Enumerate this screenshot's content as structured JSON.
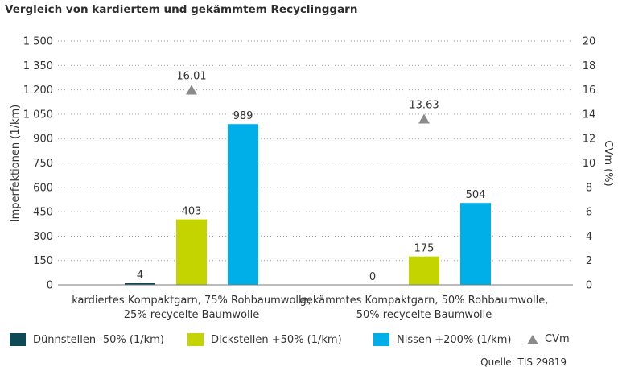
{
  "title": "Vergleich von kardiertem und gekämmtem Recyclinggarn",
  "source": "Quelle: TIS 29819",
  "colors": {
    "duennstellen": "#0e4a56",
    "dickstellen": "#c3d400",
    "nissen": "#00aee8",
    "cvm": "#8a8a8a",
    "grid": "#9a9a9a"
  },
  "chart_data": {
    "type": "bar",
    "ylabel": "Imperfektionen (1/km)",
    "y2label": "CVm (%)",
    "ylim": [
      0,
      1500
    ],
    "y2lim": [
      0,
      20
    ],
    "yticks": [
      "0",
      "150",
      "300",
      "450",
      "600",
      "750",
      "900",
      "1 050",
      "1 200",
      "1 350",
      "1 500"
    ],
    "y2ticks": [
      "0",
      "2",
      "4",
      "6",
      "8",
      "10",
      "12",
      "14",
      "16",
      "18",
      "20"
    ],
    "grid": true,
    "legend_position": "bottom",
    "categories": [
      [
        "kardiertes Kompaktgarn, 75% Rohbaumwolle,",
        "25% recycelte Baumwolle"
      ],
      [
        "gekämmtes Kompaktgarn, 50% Rohbaumwolle,",
        "50% recycelte Baumwolle"
      ]
    ],
    "series": [
      {
        "name": "Dünnstellen -50% (1/km)",
        "values": [
          4,
          0
        ],
        "labels": [
          "4",
          "0"
        ],
        "axis": "left"
      },
      {
        "name": "Dickstellen +50% (1/km)",
        "values": [
          403,
          175
        ],
        "labels": [
          "403",
          "175"
        ],
        "axis": "left"
      },
      {
        "name": "Nissen +200% (1/km)",
        "values": [
          989,
          504
        ],
        "labels": [
          "989",
          "504"
        ],
        "axis": "left"
      },
      {
        "name": "CVm",
        "values": [
          16.01,
          13.63
        ],
        "labels": [
          "16.01",
          "13.63"
        ],
        "axis": "right",
        "marker": "triangle"
      }
    ]
  }
}
